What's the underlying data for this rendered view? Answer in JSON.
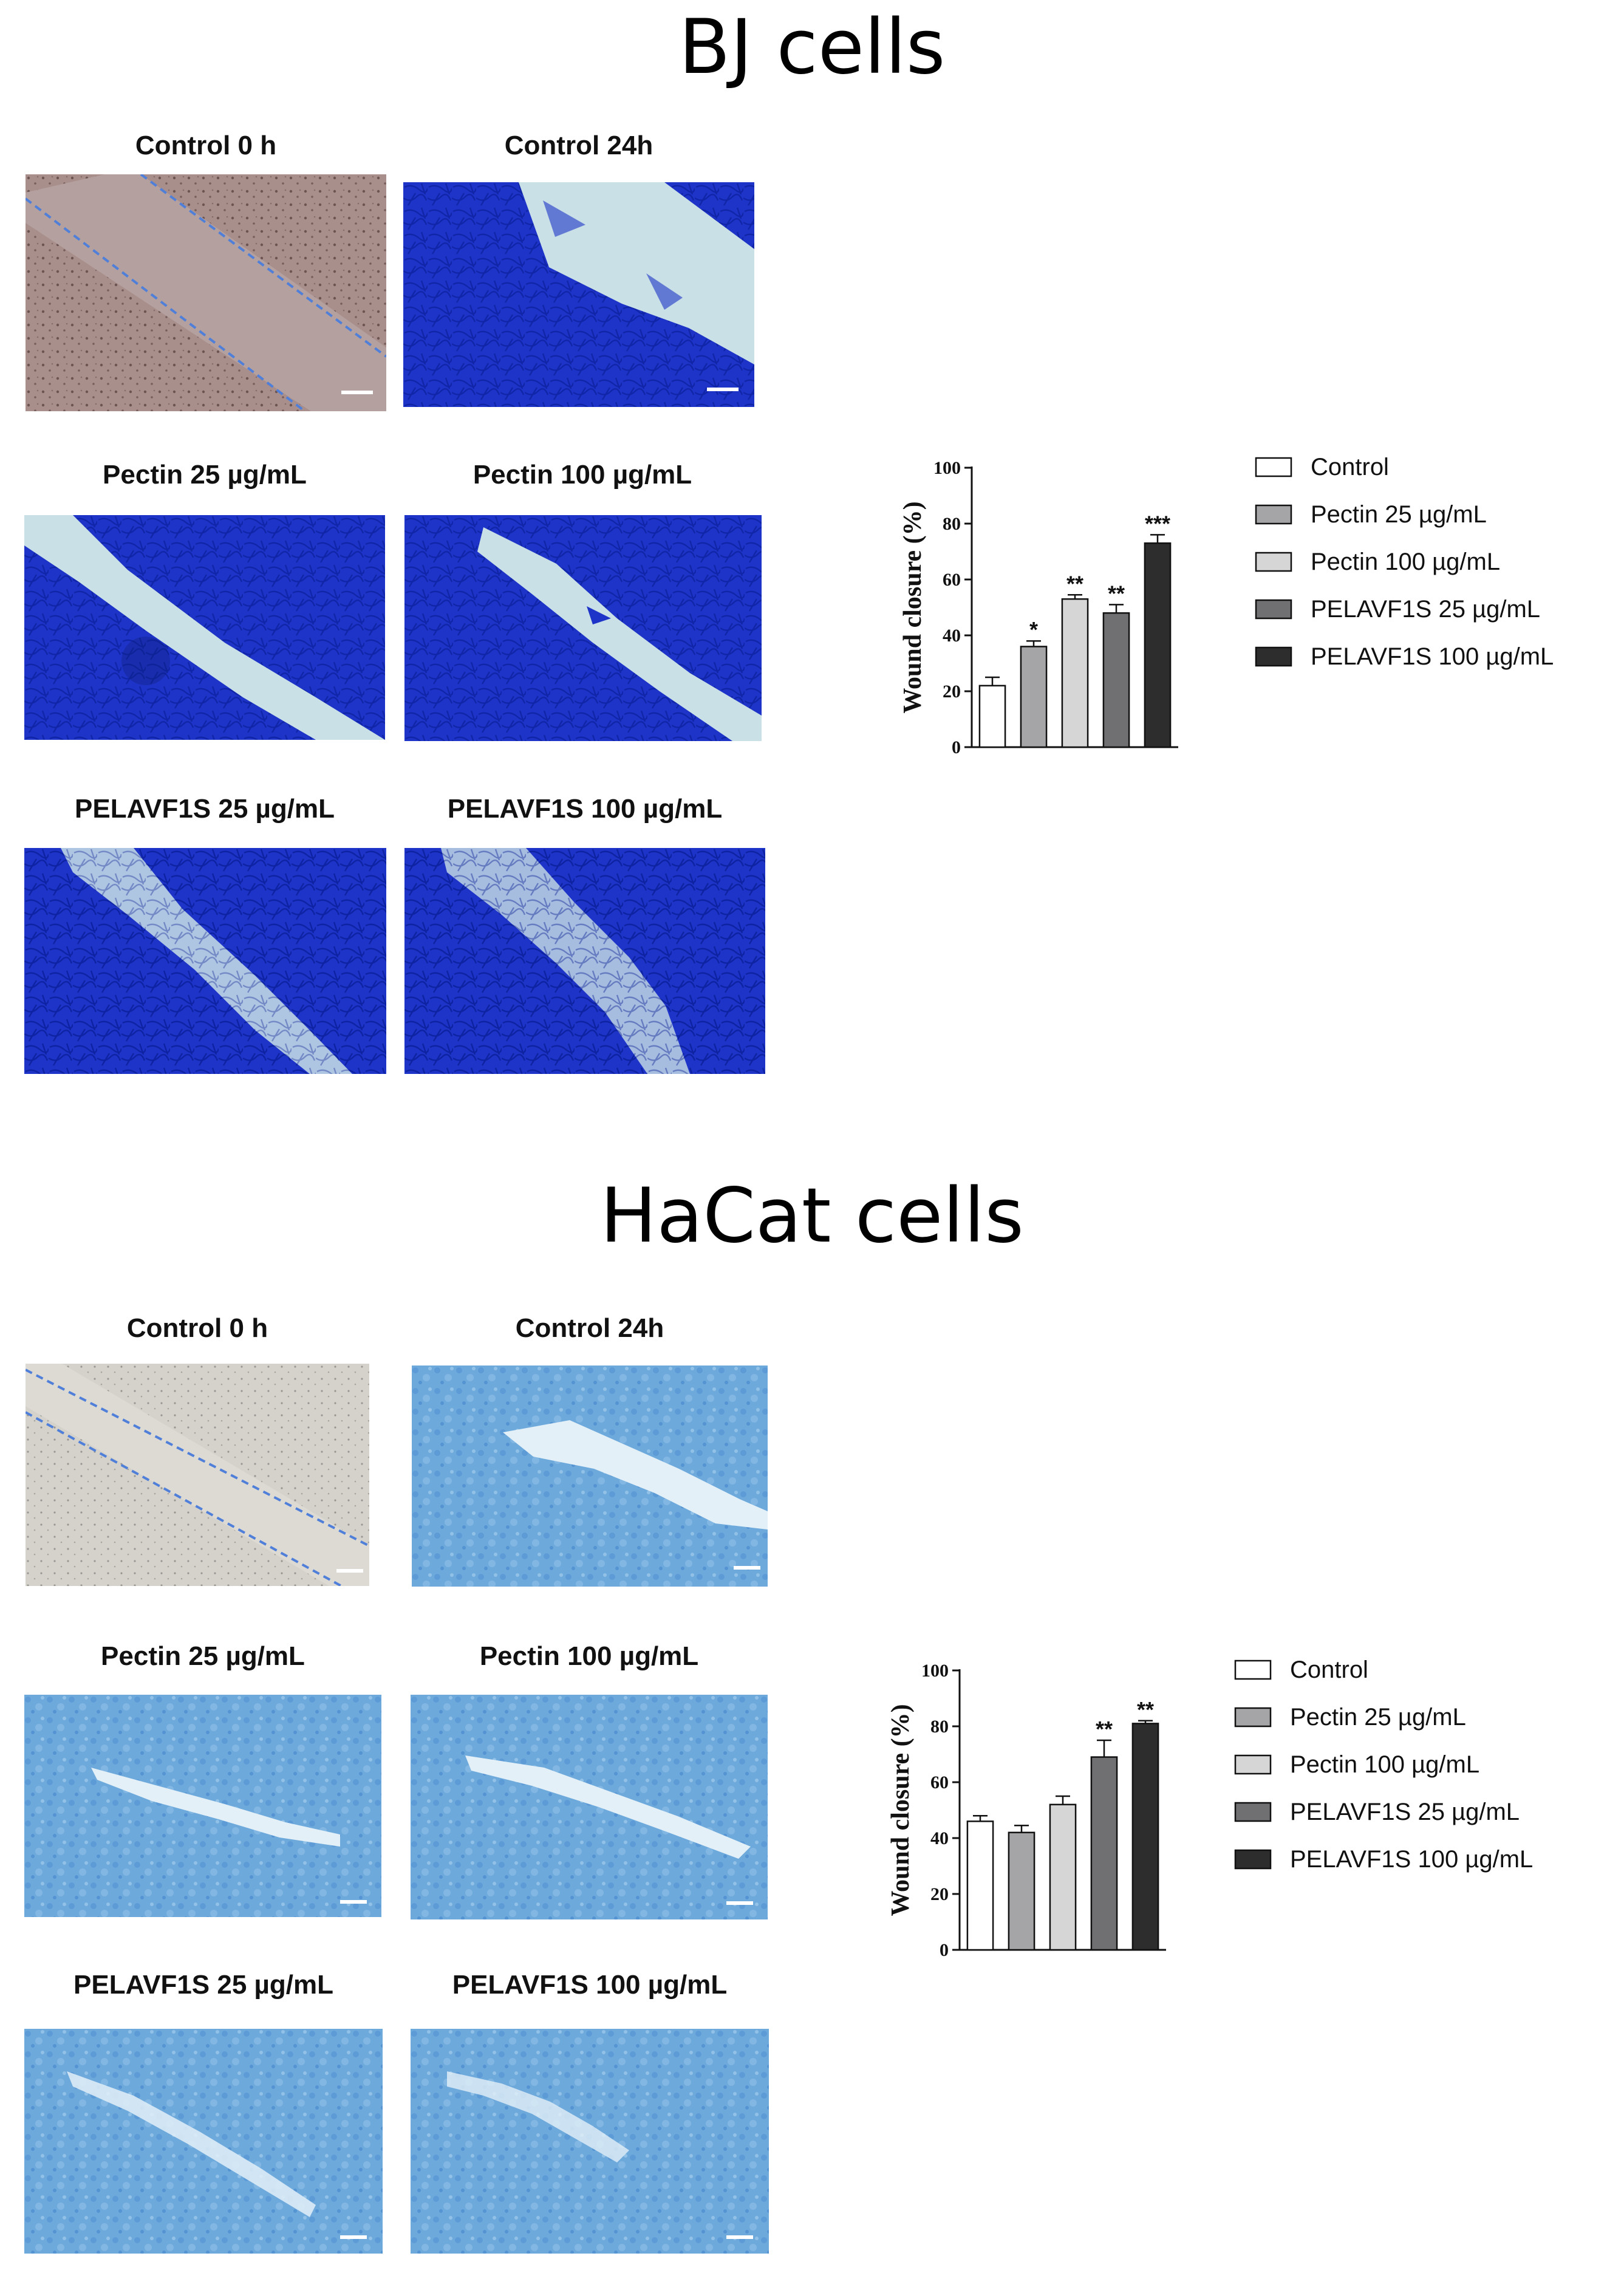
{
  "bj": {
    "title": "BJ cells",
    "panels": [
      {
        "label": "Control 0 h"
      },
      {
        "label": "Control 24h"
      },
      {
        "label": "Pectin 25 µg/mL"
      },
      {
        "label": "Pectin 100 µg/mL"
      },
      {
        "label": "PELAVF1S 25 µg/mL"
      },
      {
        "label": "PELAVF1S 100 µg/mL"
      }
    ]
  },
  "hacat": {
    "title": "HaCat cells",
    "panels": [
      {
        "label": "Control 0 h"
      },
      {
        "label": "Control 24h"
      },
      {
        "label": "Pectin 25 µg/mL"
      },
      {
        "label": "Pectin 100 µg/mL"
      },
      {
        "label": "PELAVF1S 25 µg/mL"
      },
      {
        "label": "PELAVF1S 100 µg/mL"
      }
    ]
  },
  "colors": {
    "bj_stain": "#1e34c8",
    "bj_gap": "#c9e0e6",
    "hacat_stain": "#6ea9dc",
    "hacat_gap": "#e3f0f8",
    "brightfield_bj": "#a98f8c",
    "brightfield_hacat": "#d5d2cc",
    "scratch_line": "#4f7fd8",
    "scale_bar": "#ffffff"
  },
  "chart_data": [
    {
      "type": "bar",
      "categories": [
        "Control",
        "Pectin 25 µg/mL",
        "Pectin 100 µg/mL",
        "PELAVF1S 25 µg/mL",
        "PELAVF1S 100 µg/mL"
      ],
      "values": [
        22,
        36,
        53,
        48,
        73
      ],
      "errors": [
        3,
        2,
        1.5,
        3,
        3
      ],
      "annotations": [
        "",
        "*",
        "**",
        "**",
        "***"
      ],
      "colors": [
        "#ffffff",
        "#a5a5a7",
        "#d6d6d6",
        "#707072",
        "#2d2d2d"
      ],
      "ylabel": "Wound closure (%)",
      "yticks": [
        0,
        20,
        40,
        60,
        80,
        100
      ],
      "ylim": [
        0,
        100
      ],
      "legend": "right"
    },
    {
      "type": "bar",
      "categories": [
        "Control",
        "Pectin 25 µg/mL",
        "Pectin 100 µg/mL",
        "PELAVF1S 25 µg/mL",
        "PELAVF1S 100 µg/mL"
      ],
      "values": [
        46,
        42,
        52,
        69,
        81
      ],
      "errors": [
        2,
        2.5,
        3,
        6,
        1
      ],
      "annotations": [
        "",
        "",
        "",
        "**",
        "**"
      ],
      "colors": [
        "#ffffff",
        "#a5a5a7",
        "#d6d6d6",
        "#707072",
        "#2d2d2d"
      ],
      "ylabel": "Wound closure (%)",
      "yticks": [
        0,
        20,
        40,
        60,
        80,
        100
      ],
      "ylim": [
        0,
        100
      ],
      "legend": "right"
    }
  ]
}
